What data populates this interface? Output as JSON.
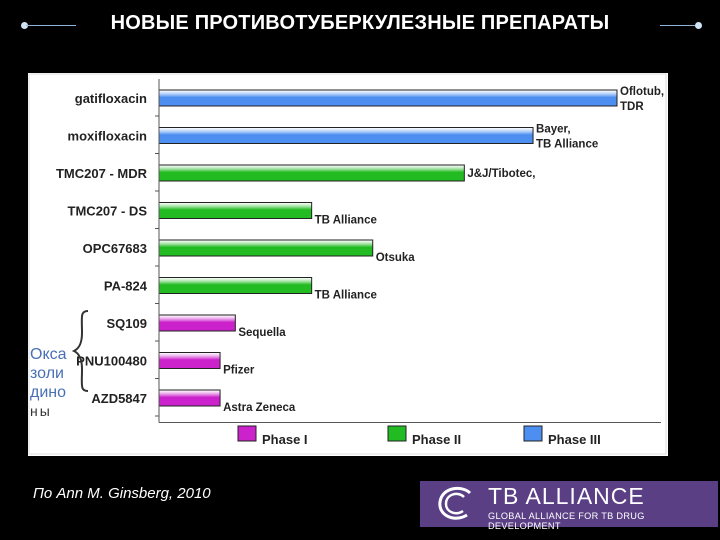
{
  "slide": {
    "title": "НОВЫЕ ПРОТИВОТУБЕРКУЛЕЗНЫЕ ПРЕПАРАТЫ",
    "citation": "По Ann M. Ginsberg, 2010"
  },
  "oxazolidinones_label": [
    "Окса",
    "золи",
    "дино",
    "ны"
  ],
  "logo": {
    "main": "TB ALLIANCE",
    "sub": "GLOBAL ALLIANCE FOR TB DRUG DEVELOPMENT"
  },
  "colors": {
    "phase_i": "#cc22cc",
    "phase_ii": "#22bb22",
    "phase_iii": "#4d8ff0"
  },
  "chart_data": {
    "type": "bar",
    "orientation": "horizontal",
    "title": "",
    "xlabel": "",
    "ylabel": "",
    "legend_position": "bottom",
    "grid": false,
    "categories": [
      "gatifloxacin",
      "moxifloxacin",
      "TMC207 - MDR",
      "TMC207 - DS",
      "OPC67683",
      "PA-824",
      "SQ109",
      "PNU100480",
      "AZD5847"
    ],
    "values": [
      3,
      2.45,
      2,
      1,
      1.4,
      1,
      0.5,
      0.4,
      0.4
    ],
    "phase": [
      "Phase III",
      "Phase III",
      "Phase II",
      "Phase II",
      "Phase II",
      "Phase II",
      "Phase I",
      "Phase I",
      "Phase I"
    ],
    "sponsors": [
      [
        "Oflotub,",
        "TDR"
      ],
      [
        "Bayer,",
        "TB Alliance"
      ],
      [
        "J&J/Tibotec,"
      ],
      [
        "TB Alliance"
      ],
      [
        "Otsuka"
      ],
      [
        "TB Alliance"
      ],
      [
        "Sequella"
      ],
      [
        "Pfizer"
      ],
      [
        "Astra Zeneca"
      ]
    ],
    "legend": [
      "Phase I",
      "Phase II",
      "Phase III"
    ]
  }
}
